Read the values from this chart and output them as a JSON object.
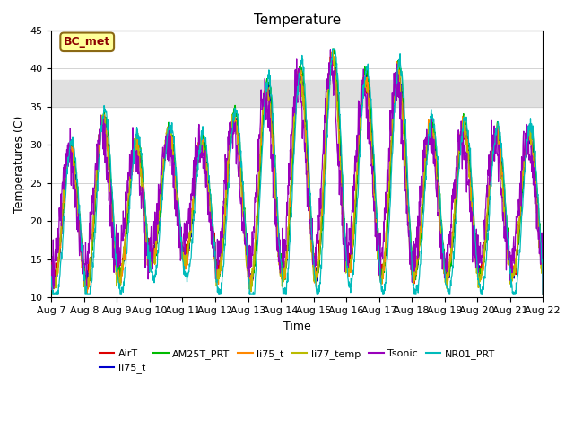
{
  "title": "Temperature",
  "xlabel": "Time",
  "ylabel": "Temperatures (C)",
  "ylim": [
    10,
    45
  ],
  "xtick_labels": [
    "Aug 7",
    "Aug 8",
    "Aug 9",
    "Aug 10",
    "Aug 11",
    "Aug 12",
    "Aug 13",
    "Aug 14",
    "Aug 15",
    "Aug 16",
    "Aug 17",
    "Aug 18",
    "Aug 19",
    "Aug 20",
    "Aug 21",
    "Aug 22"
  ],
  "shaded_band": [
    35,
    38.5
  ],
  "shaded_band_color": "#e0e0e0",
  "annotation_text": "BC_met",
  "annotation_color": "#8B0000",
  "annotation_bg": "#FFFF99",
  "annotation_edge": "#8B6914",
  "series": {
    "AirT": {
      "color": "#DD0000"
    },
    "li75_t_b": {
      "color": "#0000CC"
    },
    "AM25T_PRT": {
      "color": "#00BB00"
    },
    "li75_t": {
      "color": "#FF8800"
    },
    "li77_temp": {
      "color": "#BBBB00"
    },
    "Tsonic": {
      "color": "#9900BB"
    },
    "NR01_PRT": {
      "color": "#00BBBB"
    }
  },
  "legend_labels": [
    "AirT",
    "li75_t",
    "AM25T_PRT",
    "li75_t",
    "li77_temp",
    "Tsonic",
    "NR01_PRT"
  ],
  "n_days": 15,
  "day_maxes": [
    29,
    33,
    30,
    31,
    30,
    33,
    37,
    39,
    41,
    38,
    39,
    32,
    32,
    31,
    31
  ],
  "day_mins": [
    11,
    11,
    12,
    14,
    14,
    12,
    11,
    12,
    12,
    13,
    12,
    12,
    12,
    12,
    12
  ]
}
